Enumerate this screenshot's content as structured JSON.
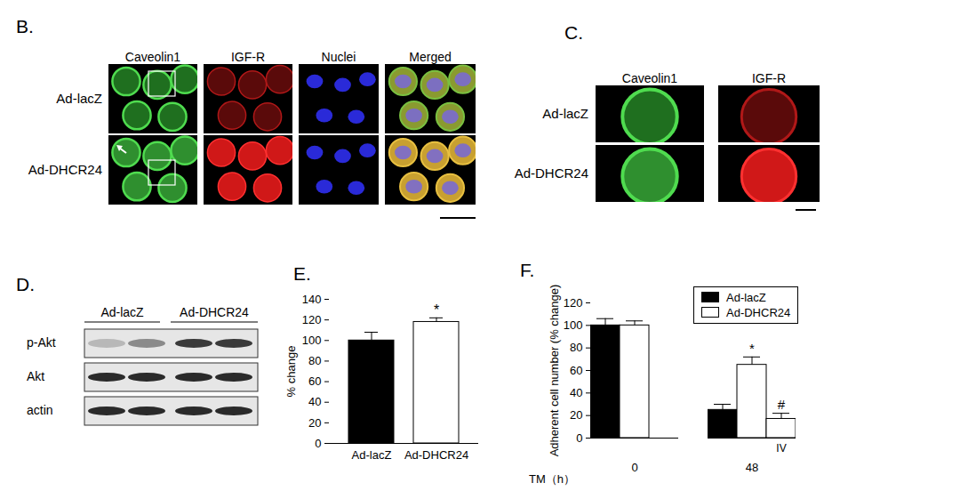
{
  "panels": {
    "B": {
      "label": "B.",
      "columns": [
        "Caveolin1",
        "IGF-R",
        "Nuclei",
        "Merged"
      ],
      "rows": [
        "Ad-lacZ",
        "Ad-DHCR24"
      ]
    },
    "C": {
      "label": "C.",
      "columns": [
        "Caveolin1",
        "IGF-R"
      ],
      "rows": [
        "Ad-lacZ",
        "Ad-DHCR24"
      ]
    },
    "D": {
      "label": "D.",
      "groups": [
        "Ad-lacZ",
        "Ad-DHCR24"
      ],
      "rows": [
        "p-Akt",
        "Akt",
        "actin"
      ]
    },
    "E": {
      "label": "E."
    },
    "F": {
      "label": "F."
    }
  },
  "chart_data": [
    {
      "type": "bar",
      "categories": [
        "Ad-lacZ",
        "Ad-DHCR24"
      ],
      "values": [
        100,
        118
      ],
      "errors": [
        8,
        4
      ],
      "annotations": [
        null,
        "*"
      ],
      "colors": [
        "#000000",
        "#ffffff"
      ],
      "ylabel": "% change",
      "ylim": [
        0,
        140
      ],
      "yticks": [
        0,
        20,
        40,
        60,
        80,
        100,
        120,
        140
      ]
    },
    {
      "type": "bar",
      "categories": [
        "0",
        "48"
      ],
      "xlabel": "TM（h）",
      "ylabel": "Adherent cell number (% change)",
      "ylim": [
        0,
        120
      ],
      "yticks": [
        0,
        20,
        40,
        60,
        80,
        100,
        120
      ],
      "legend": "top-right",
      "series": [
        {
          "name": "Ad-lacZ",
          "color": "#000000",
          "values": [
            100,
            25
          ],
          "errors": [
            6,
            5
          ],
          "annotations": [
            null,
            null
          ]
        },
        {
          "name": "Ad-DHCR24",
          "color": "#ffffff",
          "values": [
            100,
            65
          ],
          "errors": [
            4,
            7
          ],
          "annotations": [
            null,
            "*"
          ]
        }
      ],
      "extra_bars": [
        {
          "category": "48",
          "label": "IV",
          "color": "#ffffff",
          "value": 17,
          "error": 5,
          "annotation": "#"
        }
      ]
    }
  ]
}
